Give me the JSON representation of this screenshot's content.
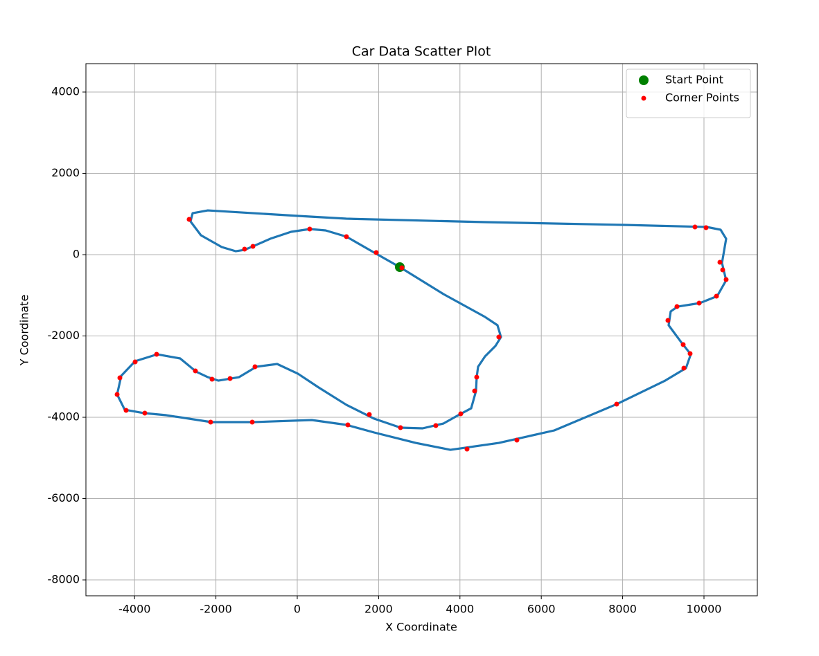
{
  "chart_data": {
    "type": "scatter",
    "title": "Car Data Scatter Plot",
    "x_label": "X Coordinate",
    "y_label": "Y Coordinate",
    "xlim": [
      -5196,
      11312
    ],
    "ylim": [
      -8391,
      4698
    ],
    "xticks": [
      -4000,
      -2000,
      0,
      2000,
      4000,
      6000,
      8000,
      10000
    ],
    "yticks": [
      -8000,
      -6000,
      -4000,
      -2000,
      0,
      2000,
      4000
    ],
    "grid": true,
    "legend": "upper right",
    "series": [
      {
        "marker": "line",
        "color": "#1f77b4",
        "x": [
          2521,
          3595,
          4617,
          4923,
          5009,
          4872,
          4617,
          4446,
          4412,
          4395,
          4276,
          4020,
          3595,
          3083,
          2538,
          1891,
          1209,
          528,
          17,
          -494,
          -1005,
          -1431,
          -1942,
          -2198,
          -2487,
          -2879,
          -3441,
          -3986,
          -4327,
          -4429,
          -4242,
          -3765,
          -3220,
          -2112,
          -1090,
          358,
          1209,
          1891,
          2913,
          3765,
          4957,
          6320,
          7853,
          9046,
          9557,
          9676,
          9472,
          9131,
          9182,
          9353,
          9898,
          10324,
          10545,
          10443,
          10545,
          10409,
          10068,
          8024,
          4617,
          1209,
          17,
          -2198,
          -2572,
          -2624,
          -2368,
          -1857,
          -1516,
          -1295,
          -1090,
          -664,
          -153,
          307,
          698,
          1209,
          1891,
          2521
        ],
        "values": [
          -306,
          -970,
          -1532,
          -1736,
          -2026,
          -2247,
          -2502,
          -2757,
          -3013,
          -3353,
          -3779,
          -3915,
          -4153,
          -4272,
          -4255,
          -4034,
          -3694,
          -3268,
          -2928,
          -2689,
          -2757,
          -3013,
          -3098,
          -3013,
          -2877,
          -2553,
          -2451,
          -2621,
          -2979,
          -3438,
          -3813,
          -3898,
          -3949,
          -4119,
          -4119,
          -4068,
          -4187,
          -4374,
          -4630,
          -4800,
          -4630,
          -4323,
          -3677,
          -3098,
          -2791,
          -2451,
          -2196,
          -1736,
          -1396,
          -1277,
          -1191,
          -1021,
          -630,
          -204,
          391,
          613,
          681,
          732,
          800,
          885,
          953,
          1089,
          1021,
          817,
          477,
          187,
          85,
          119,
          204,
          391,
          562,
          630,
          596,
          443,
          51,
          -306
        ]
      },
      {
        "name": "Start Point",
        "marker": "dot",
        "color": "#008000",
        "x": [
          2521
        ],
        "values": [
          -306
        ]
      },
      {
        "name": "Corner Points",
        "marker": "dot",
        "color": "#ff0000",
        "x": [
          -2658,
          -1295,
          -1090,
          307,
          1209,
          1942,
          2572,
          4957,
          4412,
          4361,
          4020,
          3407,
          2538,
          1772,
          1244,
          -1107,
          -2129,
          -3748,
          -4208,
          -4429,
          -4361,
          -3986,
          -3458,
          -2504,
          -2095,
          -1652,
          -1039,
          4174,
          5400,
          7853,
          9506,
          9659,
          9489,
          9114,
          9336,
          9881,
          10307,
          10545,
          10460,
          10392,
          9779,
          10051
        ],
        "values": [
          868,
          136,
          204,
          630,
          443,
          51,
          -323,
          -2026,
          -3013,
          -3353,
          -3915,
          -4204,
          -4255,
          -3932,
          -4187,
          -4119,
          -4119,
          -3898,
          -3830,
          -3438,
          -3030,
          -2638,
          -2451,
          -2860,
          -3064,
          -3047,
          -2757,
          -4783,
          -4562,
          -3677,
          -2791,
          -2434,
          -2213,
          -1617,
          -1277,
          -1191,
          -1021,
          -613,
          -374,
          -187,
          681,
          664
        ]
      }
    ]
  }
}
